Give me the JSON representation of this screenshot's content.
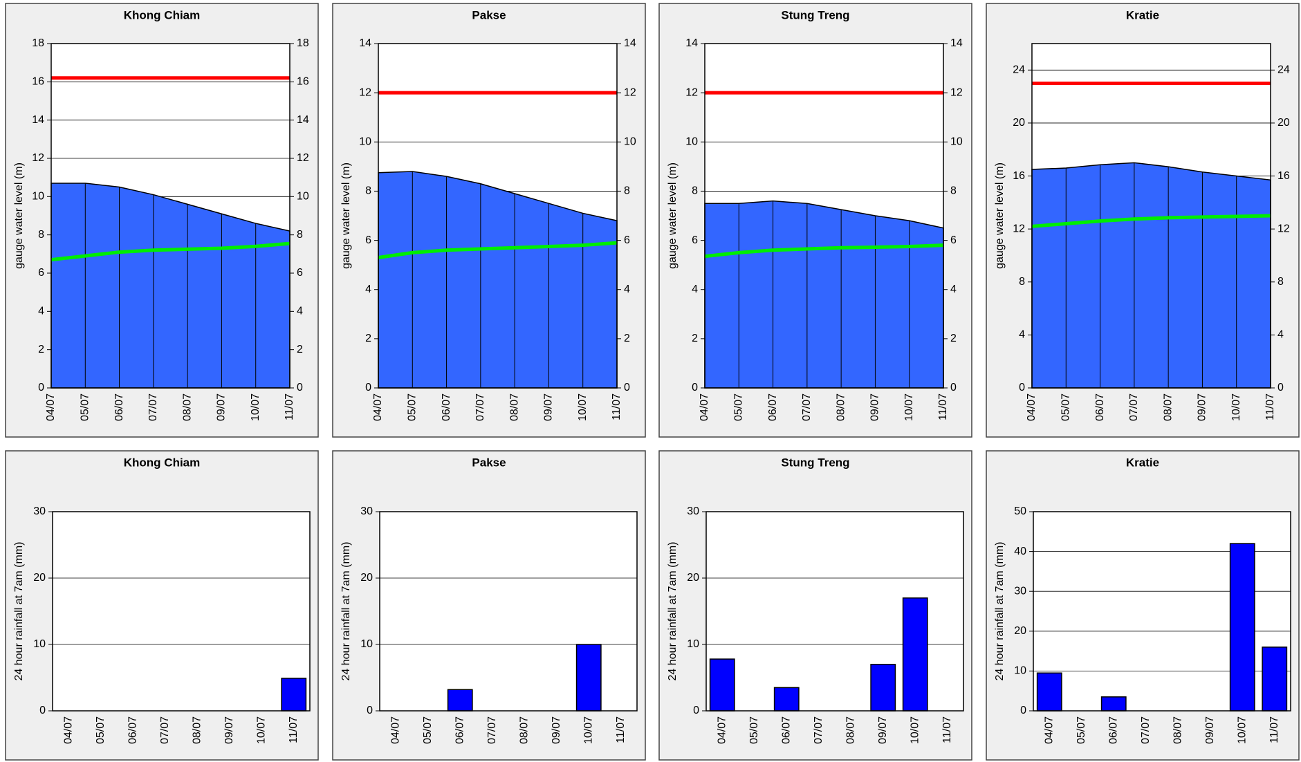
{
  "chart_data": [
    {
      "type": "area",
      "title": "Khong Chiam",
      "y_label": "gauge water level (m)",
      "categories": [
        "04/07",
        "05/07",
        "06/07",
        "07/07",
        "08/07",
        "09/07",
        "10/07",
        "11/07"
      ],
      "series": [
        {
          "type": "area",
          "color": "#3366ff",
          "values": [
            10.7,
            10.7,
            10.5,
            10.1,
            9.6,
            9.1,
            8.6,
            8.2
          ]
        },
        {
          "type": "line",
          "color": "#ff0000",
          "values": [
            16.2,
            16.2,
            16.2,
            16.2,
            16.2,
            16.2,
            16.2,
            16.2
          ]
        },
        {
          "type": "line",
          "color": "#00ee00",
          "values": [
            6.7,
            6.9,
            7.1,
            7.2,
            7.25,
            7.3,
            7.4,
            7.55
          ]
        }
      ],
      "ylim": [
        0,
        18
      ],
      "yticks": [
        0,
        2,
        4,
        6,
        8,
        10,
        12,
        14,
        16,
        18
      ],
      "y2lim": [
        0,
        18
      ],
      "y2ticks": [
        0,
        2,
        4,
        6,
        8,
        10,
        12,
        14,
        16,
        18
      ],
      "grid": true
    },
    {
      "type": "area",
      "title": "Pakse",
      "y_label": "gauge water level (m)",
      "categories": [
        "04/07",
        "05/07",
        "06/07",
        "07/07",
        "08/07",
        "09/07",
        "10/07",
        "11/07"
      ],
      "series": [
        {
          "type": "area",
          "color": "#3366ff",
          "values": [
            8.75,
            8.8,
            8.6,
            8.3,
            7.9,
            7.5,
            7.1,
            6.8
          ]
        },
        {
          "type": "line",
          "color": "#ff0000",
          "values": [
            12,
            12,
            12,
            12,
            12,
            12,
            12,
            12
          ]
        },
        {
          "type": "line",
          "color": "#00ee00",
          "values": [
            5.3,
            5.5,
            5.6,
            5.65,
            5.7,
            5.75,
            5.8,
            5.9
          ]
        }
      ],
      "ylim": [
        0,
        14
      ],
      "yticks": [
        0,
        2,
        4,
        6,
        8,
        10,
        12,
        14
      ],
      "y2lim": [
        0,
        14
      ],
      "y2ticks": [
        0,
        2,
        4,
        6,
        8,
        10,
        12,
        14
      ],
      "grid": true
    },
    {
      "type": "area",
      "title": "Stung Treng",
      "y_label": "gauge water level (m)",
      "categories": [
        "04/07",
        "05/07",
        "06/07",
        "07/07",
        "08/07",
        "09/07",
        "10/07",
        "11/07"
      ],
      "series": [
        {
          "type": "area",
          "color": "#3366ff",
          "values": [
            7.5,
            7.5,
            7.6,
            7.5,
            7.25,
            7.0,
            6.8,
            6.5
          ]
        },
        {
          "type": "line",
          "color": "#ff0000",
          "values": [
            12,
            12,
            12,
            12,
            12,
            12,
            12,
            12
          ]
        },
        {
          "type": "line",
          "color": "#00ee00",
          "values": [
            5.35,
            5.5,
            5.6,
            5.65,
            5.7,
            5.72,
            5.75,
            5.8
          ]
        }
      ],
      "ylim": [
        0,
        14
      ],
      "yticks": [
        0,
        2,
        4,
        6,
        8,
        10,
        12,
        14
      ],
      "y2lim": [
        0,
        14
      ],
      "y2ticks": [
        0,
        2,
        4,
        6,
        8,
        10,
        12,
        14
      ],
      "grid": true
    },
    {
      "type": "area",
      "title": "Kratie",
      "y_label": "gauge water level (m)",
      "categories": [
        "04/07",
        "05/07",
        "06/07",
        "07/07",
        "08/07",
        "09/07",
        "10/07",
        "11/07"
      ],
      "series": [
        {
          "type": "area",
          "color": "#3366ff",
          "values": [
            16.5,
            16.6,
            16.85,
            17.0,
            16.7,
            16.3,
            16.0,
            15.7
          ]
        },
        {
          "type": "line",
          "color": "#ff0000",
          "values": [
            23,
            23,
            23,
            23,
            23,
            23,
            23,
            23
          ]
        },
        {
          "type": "line",
          "color": "#00ee00",
          "values": [
            12.2,
            12.4,
            12.6,
            12.75,
            12.85,
            12.9,
            12.95,
            13.0
          ]
        }
      ],
      "ylim": [
        0,
        26
      ],
      "yticks": [
        0,
        4,
        8,
        12,
        16,
        20,
        24
      ],
      "y2lim": [
        0,
        26
      ],
      "y2ticks": [
        0,
        4,
        8,
        12,
        16,
        20,
        24
      ],
      "grid": true
    },
    {
      "type": "bar",
      "title": "Khong Chiam",
      "y_label": "24 hour rainfall at 7am (mm)",
      "categories": [
        "04/07",
        "05/07",
        "06/07",
        "07/07",
        "08/07",
        "09/07",
        "10/07",
        "11/07"
      ],
      "values": [
        0,
        0,
        0,
        0,
        0,
        0,
        0,
        4.9
      ],
      "color": "#0000ff",
      "ylim": [
        0,
        30
      ],
      "yticks": [
        0,
        10,
        20,
        30
      ],
      "grid": true
    },
    {
      "type": "bar",
      "title": "Pakse",
      "y_label": "24 hour rainfall at 7am (mm)",
      "categories": [
        "04/07",
        "05/07",
        "06/07",
        "07/07",
        "08/07",
        "09/07",
        "10/07",
        "11/07"
      ],
      "values": [
        0,
        0,
        3.2,
        0,
        0,
        0,
        10,
        0
      ],
      "color": "#0000ff",
      "ylim": [
        0,
        30
      ],
      "yticks": [
        0,
        10,
        20,
        30
      ],
      "grid": true
    },
    {
      "type": "bar",
      "title": "Stung Treng",
      "y_label": "24 hour rainfall at 7am (mm)",
      "categories": [
        "04/07",
        "05/07",
        "06/07",
        "07/07",
        "08/07",
        "09/07",
        "10/07",
        "11/07"
      ],
      "values": [
        7.8,
        0,
        3.5,
        0,
        0,
        7,
        17,
        0
      ],
      "color": "#0000ff",
      "ylim": [
        0,
        30
      ],
      "yticks": [
        0,
        10,
        20,
        30
      ],
      "grid": true
    },
    {
      "type": "bar",
      "title": "Kratie",
      "y_label": "24 hour rainfall at 7am (mm)",
      "categories": [
        "04/07",
        "05/07",
        "06/07",
        "07/07",
        "08/07",
        "09/07",
        "10/07",
        "11/07"
      ],
      "values": [
        9.5,
        0,
        3.5,
        0,
        0,
        0,
        42,
        16
      ],
      "color": "#0000ff",
      "ylim": [
        0,
        50
      ],
      "yticks": [
        0,
        10,
        20,
        30,
        40,
        50
      ],
      "grid": true
    }
  ]
}
